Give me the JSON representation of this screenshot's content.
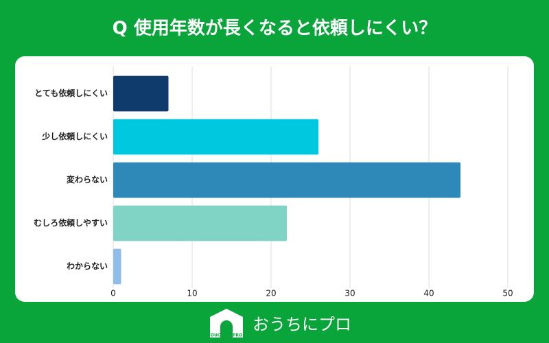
{
  "chart_data": {
    "type": "bar",
    "orientation": "horizontal",
    "title": "Q 使用年数が長くなると依頼しにくい？",
    "categories": [
      "とても依頼しにくい",
      "少し依頼しにくい",
      "変わらない",
      "むしろ依頼しやすい",
      "わからない"
    ],
    "values": [
      7,
      26,
      44,
      22,
      1
    ],
    "colors": [
      "#0e3a6c",
      "#00c8de",
      "#2e89b9",
      "#80d4c5",
      "#8dbde8"
    ],
    "xlim": [
      0,
      50
    ],
    "xticks": [
      0,
      10,
      20,
      30,
      40,
      50
    ],
    "grid": true
  },
  "logo": {
    "text": "おうちにプロ",
    "sub": "OUCHI ni PRO"
  }
}
